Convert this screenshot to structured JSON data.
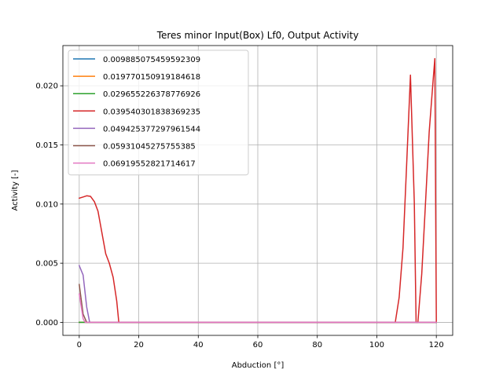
{
  "chart_data": {
    "type": "line",
    "title": "Teres minor Input(Box) Lf0, Output Activity",
    "xlabel": "Abduction [°]",
    "ylabel": "Activity [-]",
    "xlim": [
      -5.5,
      125.5
    ],
    "ylim": [
      -0.0011,
      0.0234
    ],
    "grid": true,
    "legend_position": "top-left",
    "x_ticks": [
      0,
      20,
      40,
      60,
      80,
      100,
      120
    ],
    "x_tick_labels": [
      "0",
      "20",
      "40",
      "60",
      "80",
      "100",
      "120"
    ],
    "y_ticks": [
      0.0,
      0.005,
      0.01,
      0.015,
      0.02
    ],
    "y_tick_labels": [
      "0.000",
      "0.005",
      "0.010",
      "0.015",
      "0.020"
    ],
    "series": [
      {
        "name": "0.009885075459592309",
        "color": "#1f77b4",
        "x": [
          0,
          120
        ],
        "y": [
          0.0,
          0.0
        ]
      },
      {
        "name": "0.019770150919184618",
        "color": "#ff7f0e",
        "x": [
          0,
          120
        ],
        "y": [
          0.0,
          0.0
        ]
      },
      {
        "name": "0.029655226378776926",
        "color": "#2ca02c",
        "x": [
          0,
          120
        ],
        "y": [
          0.0,
          0.0
        ]
      },
      {
        "name": "0.039540301838369235",
        "color": "#d62728",
        "x": [
          0,
          1.3,
          2.5,
          3.8,
          5.1,
          6.3,
          8.9,
          10.1,
          11.4,
          12.6,
          13.3,
          20,
          40,
          60,
          80,
          100,
          106.2,
          107.5,
          108.8,
          110.0,
          111.3,
          112.6,
          113.2,
          113.8,
          115.1,
          116.3,
          117.6,
          118.9,
          119.5,
          120.0
        ],
        "y": [
          0.0105,
          0.0106,
          0.0107,
          0.01065,
          0.0102,
          0.0094,
          0.0058,
          0.005,
          0.0038,
          0.0018,
          0.0,
          0.0,
          0.0,
          0.0,
          0.0,
          0.0,
          0.0,
          0.0021,
          0.0063,
          0.0132,
          0.0209,
          0.0101,
          0.0,
          0.0,
          0.0041,
          0.0098,
          0.0161,
          0.0204,
          0.0223,
          0.0
        ]
      },
      {
        "name": "0.049425377297961544",
        "color": "#9467bd",
        "x": [
          0,
          1.3,
          2.5,
          3.5,
          120
        ],
        "y": [
          0.0048,
          0.004,
          0.0013,
          0.0,
          0.0
        ]
      },
      {
        "name": "0.05931045275755385",
        "color": "#8c564b",
        "x": [
          0,
          1.3,
          2.5,
          120
        ],
        "y": [
          0.0032,
          0.0007,
          0.0,
          0.0
        ]
      },
      {
        "name": "0.06919552821714617",
        "color": "#e377c2",
        "x": [
          0,
          1.3,
          2.0,
          120
        ],
        "y": [
          0.0024,
          0.0003,
          0.0,
          0.0
        ]
      }
    ]
  }
}
